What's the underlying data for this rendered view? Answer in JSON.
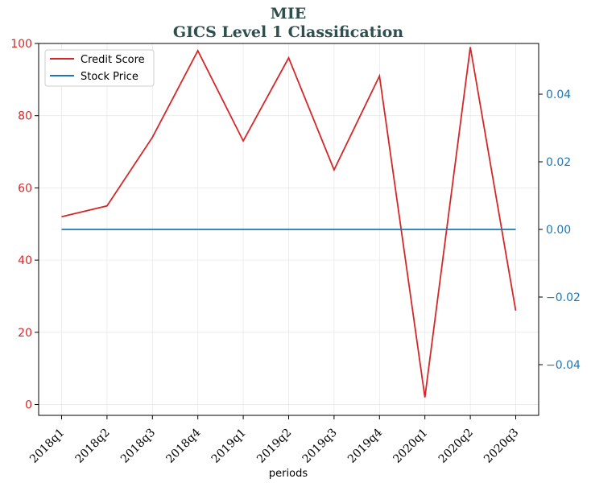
{
  "chart_data": {
    "type": "line",
    "title": "MIE",
    "subtitle": "GICS Level 1 Classification",
    "xlabel": "periods",
    "categories": [
      "2018q1",
      "2018q2",
      "2018q3",
      "2018q4",
      "2019q1",
      "2019q2",
      "2019q3",
      "2019q4",
      "2020q1",
      "2020q2",
      "2020q3"
    ],
    "left_axis": {
      "ylim": [
        -3,
        100
      ],
      "ticks": [
        "0",
        "20",
        "40",
        "60",
        "80",
        "100"
      ],
      "tick_values": [
        0,
        20,
        40,
        60,
        80,
        100
      ],
      "color": "#d62728"
    },
    "right_axis": {
      "ylim": [
        -0.055,
        0.055
      ],
      "ticks": [
        "−0.04",
        "−0.02",
        "0.00",
        "0.02",
        "0.04"
      ],
      "tick_values": [
        -0.04,
        -0.02,
        0.0,
        0.02,
        0.04
      ],
      "color": "#1f77b4"
    },
    "series": [
      {
        "name": "Credit Score",
        "axis": "left",
        "color": "#d62728",
        "values": [
          52,
          55,
          74,
          98,
          73,
          96,
          65,
          91,
          2,
          99,
          26
        ]
      },
      {
        "name": "Stock Price",
        "axis": "right",
        "color": "#1f77b4",
        "values": [
          0,
          0,
          0,
          0,
          0,
          0,
          0,
          0,
          0,
          0,
          0
        ]
      }
    ],
    "grid": true,
    "legend_position": "top-left"
  }
}
